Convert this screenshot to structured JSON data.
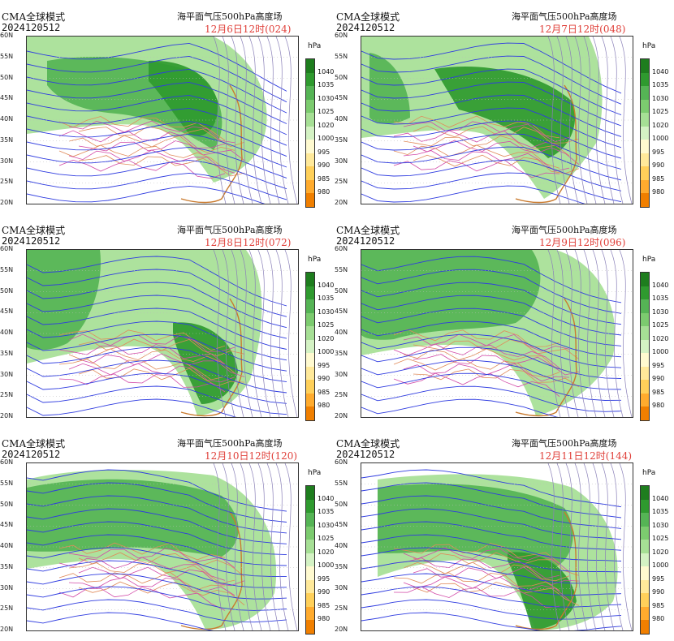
{
  "model_label": "CMA全球模式",
  "init_time": "2024120512",
  "title": "海平面气压500hPa高度场",
  "unit": "hPa",
  "lat_labels": [
    "60N",
    "55N",
    "50N",
    "45N",
    "40N",
    "35N",
    "30N",
    "25N",
    "20N"
  ],
  "colorbar": {
    "ticks": [
      "1040",
      "1035",
      "1030",
      "1025",
      "1020",
      "1000",
      "995",
      "990",
      "985",
      "980"
    ],
    "colors": [
      "#1e7d1e",
      "#2f9a2f",
      "#55b455",
      "#7ccb6f",
      "#a6df95",
      "#d4f2c4",
      "#fffad0",
      "#ffe99a",
      "#ffd05a",
      "#ffab2e",
      "#f07f00"
    ]
  },
  "panels": [
    {
      "valid": "12月6日12时(024)"
    },
    {
      "valid": "12月7日12时(048)"
    },
    {
      "valid": "12月8日12时(072)"
    },
    {
      "valid": "12月9日12时(096)"
    },
    {
      "valid": "12月10日12时(120)"
    },
    {
      "valid": "12月11日12时(144)"
    }
  ]
}
